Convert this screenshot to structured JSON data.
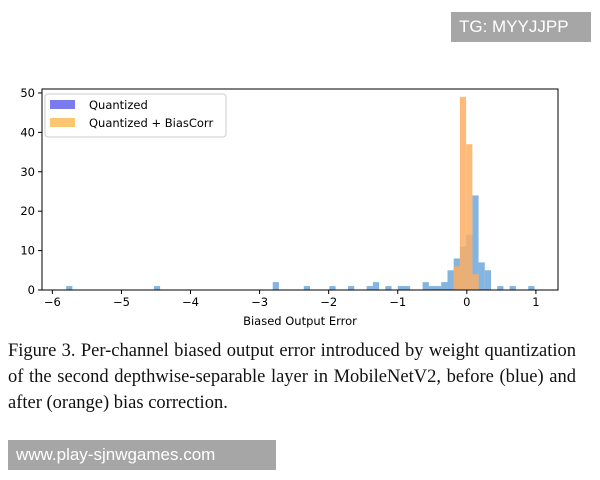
{
  "watermarks": {
    "top": "TG: MYYJJPP",
    "bottom": "www.play-sjnwgames.com"
  },
  "chart_data": {
    "type": "bar",
    "title": "",
    "xlabel": "Biased Output Error",
    "ylabel": "",
    "xlim": [
      -6.15,
      1.32
    ],
    "ylim": [
      0,
      51
    ],
    "xticks": [
      -6,
      -5,
      -4,
      -3,
      -2,
      -1,
      0,
      1
    ],
    "xtick_labels": [
      "−6",
      "−5",
      "−4",
      "−3",
      "−2",
      "−1",
      "0",
      "1"
    ],
    "yticks": [
      0,
      10,
      20,
      30,
      40,
      50
    ],
    "ytick_labels": [
      "0",
      "10",
      "20",
      "30",
      "40",
      "50"
    ],
    "bin_width": 0.09,
    "legend_position": "top-left",
    "series": [
      {
        "name": "Quantized",
        "legend_color": "#7b7bf0",
        "color": "#5b9bd5",
        "bins": [
          {
            "left": -5.8,
            "count": 1
          },
          {
            "left": -4.53,
            "count": 1
          },
          {
            "left": -2.81,
            "count": 2
          },
          {
            "left": -2.36,
            "count": 1
          },
          {
            "left": -1.99,
            "count": 1
          },
          {
            "left": -1.72,
            "count": 1
          },
          {
            "left": -1.45,
            "count": 1
          },
          {
            "left": -1.36,
            "count": 2
          },
          {
            "left": -1.18,
            "count": 1
          },
          {
            "left": -1.0,
            "count": 1
          },
          {
            "left": -0.91,
            "count": 1
          },
          {
            "left": -0.64,
            "count": 2
          },
          {
            "left": -0.55,
            "count": 1
          },
          {
            "left": -0.46,
            "count": 1
          },
          {
            "left": -0.37,
            "count": 2
          },
          {
            "left": -0.28,
            "count": 5
          },
          {
            "left": -0.19,
            "count": 8
          },
          {
            "left": -0.1,
            "count": 11
          },
          {
            "left": -0.01,
            "count": 14
          },
          {
            "left": 0.08,
            "count": 24
          },
          {
            "left": 0.17,
            "count": 7
          },
          {
            "left": 0.26,
            "count": 5
          },
          {
            "left": 0.44,
            "count": 1
          },
          {
            "left": 0.62,
            "count": 1
          },
          {
            "left": 0.89,
            "count": 1
          }
        ]
      },
      {
        "name": "Quantized + BiasCorr",
        "legend_color": "#fbc66f",
        "color": "#fdae61",
        "bins": [
          {
            "left": -0.19,
            "count": 6
          },
          {
            "left": -0.1,
            "count": 49
          },
          {
            "left": -0.01,
            "count": 37
          },
          {
            "left": 0.08,
            "count": 4
          }
        ]
      }
    ]
  },
  "caption": "Figure 3. Per-channel biased output error introduced by weight quantization of the second depthwise-separable layer in MobileNetV2, before (blue) and after (orange) bias correction."
}
